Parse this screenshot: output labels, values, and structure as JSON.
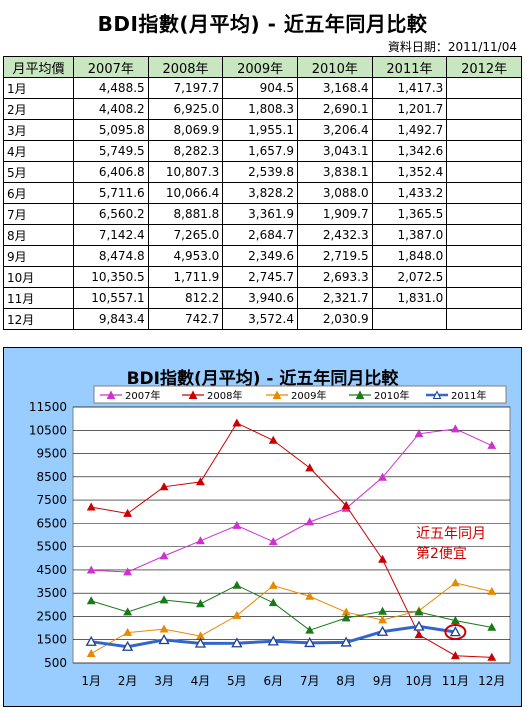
{
  "page_title": "BDI指數(月平均) - 近五年同月比較",
  "data_date": "資料日期：2011/11/04",
  "table": {
    "header_label": "月平均價",
    "years": [
      "2007年",
      "2008年",
      "2009年",
      "2010年",
      "2011年",
      "2012年"
    ],
    "rows": [
      {
        "month": "1月",
        "values": [
          "4,488.5",
          "7,197.7",
          "904.5",
          "3,168.4",
          "1,417.3",
          ""
        ]
      },
      {
        "month": "2月",
        "values": [
          "4,408.2",
          "6,925.0",
          "1,808.3",
          "2,690.1",
          "1,201.7",
          ""
        ]
      },
      {
        "month": "3月",
        "values": [
          "5,095.8",
          "8,069.9",
          "1,955.1",
          "3,206.4",
          "1,492.7",
          ""
        ]
      },
      {
        "month": "4月",
        "values": [
          "5,749.5",
          "8,282.3",
          "1,657.9",
          "3,043.1",
          "1,342.6",
          ""
        ]
      },
      {
        "month": "5月",
        "values": [
          "6,406.8",
          "10,807.3",
          "2,539.8",
          "3,838.1",
          "1,352.4",
          ""
        ]
      },
      {
        "month": "6月",
        "values": [
          "5,711.6",
          "10,066.4",
          "3,828.2",
          "3,088.0",
          "1,433.2",
          ""
        ]
      },
      {
        "month": "7月",
        "values": [
          "6,560.2",
          "8,881.8",
          "3,361.9",
          "1,909.7",
          "1,365.5",
          ""
        ]
      },
      {
        "month": "8月",
        "values": [
          "7,142.4",
          "7,265.0",
          "2,684.7",
          "2,432.3",
          "1,387.0",
          ""
        ]
      },
      {
        "month": "9月",
        "values": [
          "8,474.8",
          "4,953.0",
          "2,349.6",
          "2,719.5",
          "1,848.0",
          ""
        ]
      },
      {
        "month": "10月",
        "values": [
          "10,350.5",
          "1,711.9",
          "2,745.7",
          "2,693.3",
          "2,072.5",
          ""
        ]
      },
      {
        "month": "11月",
        "values": [
          "10,557.1",
          "812.2",
          "3,940.6",
          "2,321.7",
          "1,831.0",
          ""
        ]
      },
      {
        "month": "12月",
        "values": [
          "9,843.4",
          "742.7",
          "3,572.4",
          "2,030.9",
          "",
          ""
        ]
      }
    ]
  },
  "chart_data": {
    "type": "line",
    "title": "BDI指數(月平均) - 近五年同月比較",
    "categories": [
      "1月",
      "2月",
      "3月",
      "4月",
      "5月",
      "6月",
      "7月",
      "8月",
      "9月",
      "10月",
      "11月",
      "12月"
    ],
    "ylim": [
      500,
      11500
    ],
    "yticks": [
      500,
      1500,
      2500,
      3500,
      4500,
      5500,
      6500,
      7500,
      8500,
      9500,
      10500,
      11500
    ],
    "grid": true,
    "legend": "top",
    "series": [
      {
        "name": "2007年",
        "color": "#cc33cc",
        "marker": "triangle-filled",
        "values": [
          4488.5,
          4408.2,
          5095.8,
          5749.5,
          6406.8,
          5711.6,
          6560.2,
          7142.4,
          8474.8,
          10350.5,
          10557.1,
          9843.4
        ]
      },
      {
        "name": "2008年",
        "color": "#cc0000",
        "marker": "triangle-filled",
        "values": [
          7197.7,
          6925.0,
          8069.9,
          8282.3,
          10807.3,
          10066.4,
          8881.8,
          7265.0,
          4953.0,
          1711.9,
          812.2,
          742.7
        ]
      },
      {
        "name": "2009年",
        "color": "#e68a00",
        "marker": "triangle-filled",
        "values": [
          904.5,
          1808.3,
          1955.1,
          1657.9,
          2539.8,
          3828.2,
          3361.9,
          2684.7,
          2349.6,
          2745.7,
          3940.6,
          3572.4
        ]
      },
      {
        "name": "2010年",
        "color": "#1a7a1a",
        "marker": "triangle-filled",
        "values": [
          3168.4,
          2690.1,
          3206.4,
          3043.1,
          3838.1,
          3088.0,
          1909.7,
          2432.3,
          2719.5,
          2693.3,
          2321.7,
          2030.9
        ]
      },
      {
        "name": "2011年",
        "color": "#3366cc",
        "marker": "triangle-open",
        "values": [
          1417.3,
          1201.7,
          1492.7,
          1342.6,
          1352.4,
          1433.2,
          1365.5,
          1387.0,
          1848.0,
          2072.5,
          1831.0,
          null
        ]
      }
    ],
    "annotation": {
      "lines": [
        "近五年同月",
        "第2便宜"
      ],
      "color": "#cc0000",
      "circled_series": "2011年",
      "circled_category": "11月"
    }
  }
}
